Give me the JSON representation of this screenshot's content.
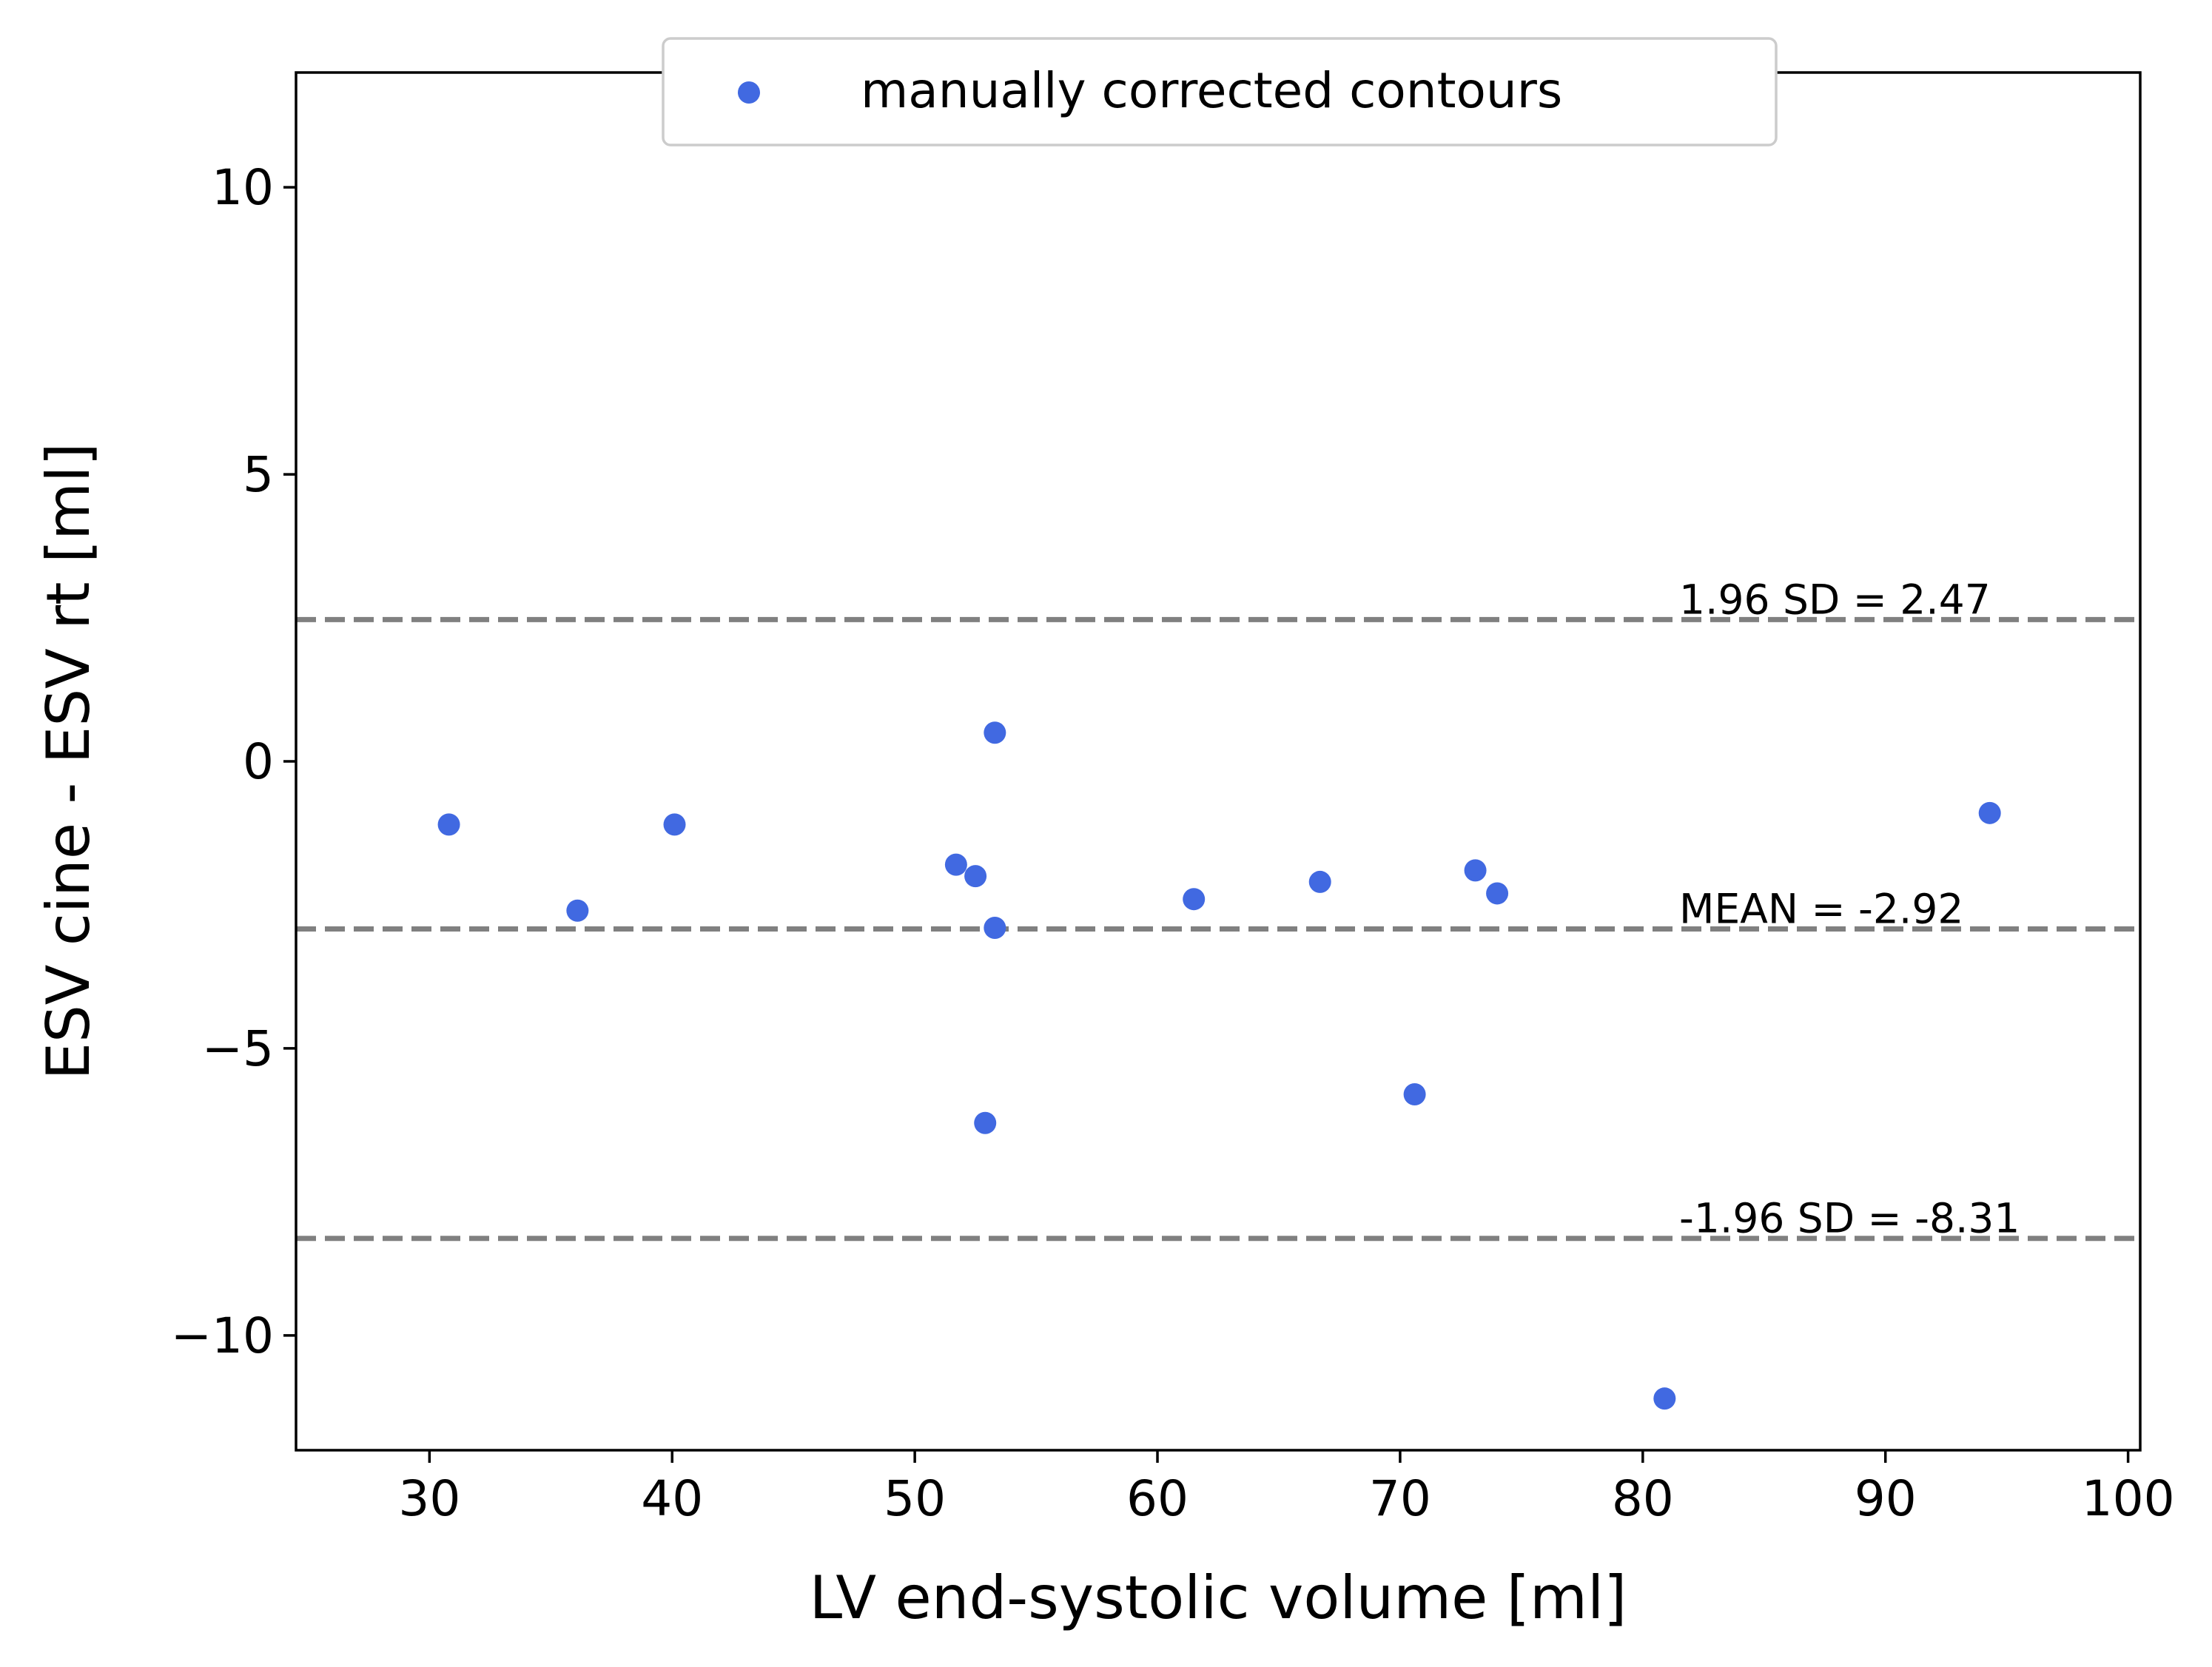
{
  "chart_data": {
    "type": "scatter",
    "xlabel": "LV end-systolic volume [ml]",
    "ylabel": "ESV cine - ESV rt [ml]",
    "xlim": [
      24.5,
      100.5
    ],
    "ylim": [
      -12,
      12
    ],
    "xticks": [
      30,
      40,
      50,
      60,
      70,
      80,
      90,
      100
    ],
    "yticks": [
      10,
      5,
      0,
      -5,
      -10
    ],
    "ytick_labels": [
      "10",
      "5",
      "0",
      "−5",
      "−10"
    ],
    "grid": false,
    "legend_position": "top-center",
    "series": [
      {
        "name": "manually corrected contours",
        "color": "#4169e1",
        "points": [
          {
            "x": 30.8,
            "y": -1.1
          },
          {
            "x": 36.1,
            "y": -2.6
          },
          {
            "x": 40.1,
            "y": -1.1
          },
          {
            "x": 51.7,
            "y": -1.8
          },
          {
            "x": 52.5,
            "y": -2.0
          },
          {
            "x": 53.3,
            "y": 0.5
          },
          {
            "x": 53.3,
            "y": -2.9
          },
          {
            "x": 52.9,
            "y": -6.3
          },
          {
            "x": 61.5,
            "y": -2.4
          },
          {
            "x": 66.7,
            "y": -2.1
          },
          {
            "x": 70.6,
            "y": -5.8
          },
          {
            "x": 73.1,
            "y": -1.9
          },
          {
            "x": 74.0,
            "y": -2.3
          },
          {
            "x": 80.9,
            "y": -11.1
          },
          {
            "x": 94.3,
            "y": -0.9
          }
        ]
      }
    ],
    "reference_lines": [
      {
        "y": 2.47,
        "label": "1.96 SD = 2.47"
      },
      {
        "y": -2.92,
        "label": "MEAN = -2.92"
      },
      {
        "y": -8.31,
        "label": "-1.96 SD = -8.31"
      }
    ],
    "reference_line_color": "#808080",
    "reference_label_x": 81.5
  }
}
